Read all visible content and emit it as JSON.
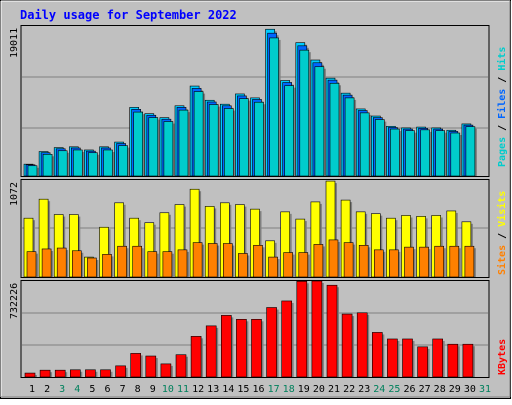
{
  "title": "Daily usage for September 2022",
  "colors": {
    "background": "#C0C0C0",
    "title": "#0000FF",
    "hits": "#00CCFF",
    "files": "#0066FF",
    "pages": "#00CCCC",
    "visits": "#FFFF00",
    "sites": "#FF8000",
    "kbytes": "#FF0000",
    "weekday_label": "#000000",
    "weekend_label": "#00805C"
  },
  "chart_data": [
    {
      "type": "bar",
      "panel": "hits",
      "ylabel_parts": [
        "Pages",
        "Files",
        "Hits"
      ],
      "ymax_label": "19011",
      "ylim": [
        0,
        19011
      ],
      "x": [
        1,
        2,
        3,
        4,
        5,
        6,
        7,
        8,
        9,
        10,
        11,
        12,
        13,
        14,
        15,
        16,
        17,
        18,
        19,
        20,
        21,
        22,
        23,
        24,
        25,
        26,
        27,
        28,
        29,
        30,
        31
      ],
      "weekend_days": [
        3,
        4,
        10,
        11,
        17,
        18,
        24,
        25,
        31
      ],
      "series": [
        {
          "name": "Hits",
          "values": [
            1500,
            3100,
            3600,
            3700,
            3300,
            3700,
            4300,
            8700,
            7900,
            7400,
            8900,
            11400,
            9600,
            9100,
            10400,
            9900,
            18600,
            12100,
            16900,
            14700,
            12400,
            10500,
            8500,
            7600,
            6300,
            6100,
            6200,
            6100,
            5800,
            6600,
            0
          ]
        },
        {
          "name": "Files",
          "values": [
            1420,
            2950,
            3450,
            3550,
            3150,
            3550,
            4120,
            8450,
            7700,
            7200,
            8700,
            11100,
            9380,
            8900,
            10150,
            9700,
            18100,
            11850,
            16500,
            14350,
            12150,
            10250,
            8300,
            7400,
            6150,
            5950,
            6050,
            5950,
            5650,
            6450,
            0
          ]
        },
        {
          "name": "Pages",
          "values": [
            1300,
            2750,
            3200,
            3300,
            2950,
            3300,
            3850,
            8100,
            7400,
            6900,
            8350,
            10700,
            9050,
            8550,
            9800,
            9350,
            17500,
            11450,
            15950,
            13850,
            11750,
            9900,
            8000,
            7150,
            5950,
            5750,
            5850,
            5750,
            5450,
            6250,
            0
          ]
        }
      ]
    },
    {
      "type": "bar",
      "panel": "visits",
      "ylabel_parts": [
        "Sites",
        "Visits"
      ],
      "ymax_label": "1072",
      "ylim": [
        0,
        1072
      ],
      "x": [
        1,
        2,
        3,
        4,
        5,
        6,
        7,
        8,
        9,
        10,
        11,
        12,
        13,
        14,
        15,
        16,
        17,
        18,
        19,
        20,
        21,
        22,
        23,
        24,
        25,
        26,
        27,
        28,
        29,
        30,
        31
      ],
      "series": [
        {
          "name": "Visits",
          "values": [
            650,
            860,
            690,
            690,
            220,
            550,
            820,
            650,
            600,
            710,
            800,
            970,
            780,
            820,
            800,
            750,
            400,
            720,
            640,
            830,
            1060,
            850,
            720,
            700,
            650,
            680,
            670,
            680,
            730,
            610,
            0
          ]
        },
        {
          "name": "Sites",
          "values": [
            280,
            310,
            320,
            290,
            210,
            250,
            340,
            340,
            280,
            280,
            300,
            380,
            370,
            370,
            260,
            350,
            220,
            270,
            270,
            360,
            410,
            380,
            350,
            300,
            300,
            330,
            330,
            340,
            340,
            340,
            0
          ]
        }
      ]
    },
    {
      "type": "bar",
      "panel": "kbytes",
      "ylabel_parts": [
        "KBytes"
      ],
      "ymax_label": "732226",
      "ylim": [
        0,
        732226
      ],
      "x": [
        1,
        2,
        3,
        4,
        5,
        6,
        7,
        8,
        9,
        10,
        11,
        12,
        13,
        14,
        15,
        16,
        17,
        18,
        19,
        20,
        21,
        22,
        23,
        24,
        25,
        26,
        27,
        28,
        29,
        30,
        31
      ],
      "series": [
        {
          "name": "KBytes",
          "values": [
            30000,
            52000,
            52000,
            55000,
            55000,
            55000,
            85000,
            180000,
            160000,
            100000,
            170000,
            310000,
            390000,
            470000,
            440000,
            440000,
            530000,
            580000,
            730000,
            732226,
            700000,
            480000,
            490000,
            340000,
            290000,
            290000,
            230000,
            290000,
            250000,
            250000,
            0
          ]
        }
      ]
    }
  ]
}
